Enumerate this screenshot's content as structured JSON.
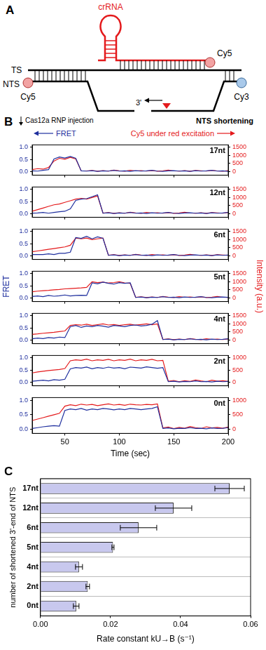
{
  "diagram": {
    "panel_label": "A",
    "labels": {
      "crRNA": "crRNA",
      "ts": "TS",
      "nts": "NTS",
      "ts_dye": "Cy5",
      "nts_left_dye": "Cy5",
      "nts_right_dye": "Cy3",
      "end": "3'"
    }
  },
  "chart_data": [
    {
      "type": "line",
      "panel_label": "B",
      "header": {
        "injection": "Cas12a RNP injection",
        "corner": "NTS shortening"
      },
      "x_label": "Time (sec)",
      "y_label": "FRET",
      "y2_label": "Intensity (a.u.)",
      "x": [
        20,
        25,
        30,
        35,
        40,
        45,
        50,
        55,
        60,
        65,
        70,
        75,
        80,
        85,
        90,
        95,
        100,
        105,
        110,
        115,
        120,
        125,
        130,
        135,
        140,
        145,
        150,
        155,
        160,
        165,
        170,
        175,
        180,
        185,
        190,
        195,
        200
      ],
      "xlim": [
        20,
        200
      ],
      "xticks": [
        50,
        100,
        150,
        200
      ],
      "subplots": [
        {
          "title": "17nt",
          "ylim": [
            -0.15,
            1.1
          ],
          "yticks": [
            {
              "value": 0,
              "label": "0.0"
            },
            {
              "value": 0.5,
              "label": "0.5"
            },
            {
              "value": 1,
              "label": "1.0"
            }
          ],
          "y2lim": [
            -225,
            1650
          ],
          "y2ticks": [
            0,
            500,
            1000,
            1500
          ],
          "series": [
            {
              "name": "FRET",
              "color": "#1f2f9e",
              "values": [
                0.03,
                0.02,
                0.05,
                0.08,
                0.52,
                0.6,
                0.56,
                0.62,
                0.55,
                0.03,
                0.02,
                0.04,
                0.01,
                0.03,
                0.02,
                0.05,
                0.02,
                0.03,
                0.01,
                0.04,
                0.02,
                0.03,
                0.05,
                0.02,
                0.01,
                0.03,
                0.04,
                0.02,
                0.03,
                0.01,
                0.04,
                0.02,
                0.03,
                0.05,
                0.02,
                0.03,
                0.01
              ]
            },
            {
              "name": "Cy5 under red excitation",
              "color": "#e41a1c",
              "axis": "y2",
              "values": [
                120,
                180,
                150,
                250,
                650,
                820,
                760,
                880,
                780,
                40,
                40,
                70,
                20,
                60,
                30,
                90,
                50,
                20,
                80,
                40,
                60,
                30,
                70,
                20,
                50,
                90,
                40,
                30,
                60,
                20,
                70,
                50,
                30,
                80,
                40,
                20,
                60
              ]
            }
          ]
        },
        {
          "title": "12nt",
          "ylim": [
            -0.15,
            1.1
          ],
          "yticks": [
            {
              "value": 0,
              "label": "0.0"
            },
            {
              "value": 0.5,
              "label": "0.5"
            },
            {
              "value": 1,
              "label": "1.0"
            }
          ],
          "y2lim": [
            -225,
            1650
          ],
          "y2ticks": [
            0,
            500,
            1000,
            1500
          ],
          "series": [
            {
              "name": "FRET",
              "color": "#1f2f9e",
              "values": [
                0.02,
                0.03,
                0.05,
                0.02,
                0.05,
                0.08,
                0.1,
                0.2,
                0.55,
                0.6,
                0.62,
                0.7,
                0.78,
                0.02,
                0.04,
                0.01,
                0.03,
                0.02,
                0.05,
                0.02,
                0.03,
                0.01,
                0.04,
                0.02,
                0.03,
                0.05,
                0.02,
                0.01,
                0.03,
                0.04,
                0.02,
                0.03,
                0.01,
                0.04,
                0.02,
                0.03,
                0.05
              ]
            },
            {
              "name": "Cy5 under red excitation",
              "color": "#e41a1c",
              "axis": "y2",
              "values": [
                150,
                250,
                350,
                450,
                550,
                600,
                700,
                800,
                900,
                950,
                900,
                1000,
                1100,
                40,
                70,
                20,
                60,
                30,
                90,
                50,
                20,
                80,
                40,
                60,
                30,
                70,
                20,
                50,
                90,
                40,
                30,
                60,
                20,
                70,
                50,
                30,
                80
              ]
            }
          ]
        },
        {
          "title": "6nt",
          "ylim": [
            -0.15,
            1.1
          ],
          "yticks": [
            {
              "value": 0,
              "label": "0.0"
            },
            {
              "value": 0.5,
              "label": "0.5"
            },
            {
              "value": 1,
              "label": "1.0"
            }
          ],
          "y2lim": [
            -225,
            1650
          ],
          "y2ticks": [
            0,
            500,
            1000,
            1500
          ],
          "series": [
            {
              "name": "FRET",
              "color": "#1f2f9e",
              "values": [
                0.05,
                0.05,
                0.05,
                0.08,
                0.05,
                0.1,
                0.1,
                0.15,
                0.75,
                0.72,
                0.8,
                0.7,
                0.78,
                0.72,
                0.02,
                0.04,
                0.01,
                0.03,
                0.02,
                0.05,
                0.02,
                0.03,
                0.01,
                0.04,
                0.02,
                0.03,
                0.05,
                0.02,
                0.01,
                0.03,
                0.04,
                0.02,
                0.03,
                0.01,
                0.04,
                0.02,
                0.03
              ]
            },
            {
              "name": "Cy5 under red excitation",
              "color": "#e41a1c",
              "axis": "y2",
              "values": [
                250,
                300,
                350,
                400,
                450,
                500,
                550,
                650,
                1100,
                1050,
                1100,
                1000,
                1050,
                1100,
                40,
                70,
                20,
                60,
                30,
                90,
                50,
                20,
                80,
                40,
                60,
                30,
                70,
                20,
                50,
                90,
                40,
                30,
                60,
                20,
                70,
                50,
                30
              ]
            }
          ]
        },
        {
          "title": "5nt",
          "ylim": [
            -0.15,
            1.1
          ],
          "yticks": [
            {
              "value": 0,
              "label": "0.0"
            },
            {
              "value": 0.5,
              "label": "0.5"
            },
            {
              "value": 1,
              "label": "1.0"
            }
          ],
          "y2lim": [
            -225,
            1650
          ],
          "y2ticks": [
            0,
            500,
            1000,
            1500
          ],
          "series": [
            {
              "name": "FRET",
              "color": "#1f2f9e",
              "values": [
                0.06,
                0.08,
                0.05,
                0.1,
                0.07,
                0.09,
                0.12,
                0.08,
                0.1,
                0.11,
                0.1,
                0.62,
                0.58,
                0.65,
                0.6,
                0.57,
                0.63,
                0.6,
                0.62,
                0.02,
                0.04,
                0.01,
                0.03,
                0.02,
                0.05,
                0.02,
                0.03,
                0.01,
                0.04,
                0.02,
                0.03,
                0.05,
                0.02,
                0.01,
                0.03,
                0.04,
                0.02
              ]
            },
            {
              "name": "Cy5 under red excitation",
              "color": "#e41a1c",
              "axis": "y2",
              "values": [
                380,
                420,
                450,
                470,
                500,
                520,
                560,
                580,
                600,
                620,
                650,
                1000,
                950,
                980,
                920,
                950,
                1000,
                930,
                900,
                40,
                70,
                20,
                60,
                30,
                90,
                50,
                20,
                80,
                40,
                60,
                30,
                70,
                20,
                50,
                90,
                40,
                30
              ]
            }
          ]
        },
        {
          "title": "4nt",
          "ylim": [
            -0.15,
            1.1
          ],
          "yticks": [
            {
              "value": 0,
              "label": "0.0"
            },
            {
              "value": 0.5,
              "label": "0.5"
            },
            {
              "value": 1,
              "label": "1.0"
            }
          ],
          "y2lim": [
            -225,
            1650
          ],
          "y2ticks": [
            0,
            500,
            1000,
            1500
          ],
          "series": [
            {
              "name": "FRET",
              "color": "#1f2f9e",
              "values": [
                0.05,
                0.08,
                0.06,
                0.1,
                0.08,
                0.12,
                0.1,
                0.55,
                0.6,
                0.52,
                0.58,
                0.55,
                0.6,
                0.57,
                0.53,
                0.6,
                0.58,
                0.55,
                0.6,
                0.62,
                0.58,
                0.6,
                0.65,
                0.8,
                0.02,
                0.04,
                0.01,
                0.03,
                0.02,
                0.05,
                0.02,
                0.03,
                0.01,
                0.04,
                0.02,
                0.03,
                0.05
              ]
            },
            {
              "name": "Cy5 under red excitation",
              "color": "#e41a1c",
              "axis": "y2",
              "values": [
                350,
                380,
                420,
                450,
                480,
                520,
                560,
                900,
                950,
                920,
                980,
                900,
                950,
                1000,
                930,
                960,
                900,
                950,
                980,
                920,
                960,
                1000,
                950,
                1000,
                40,
                70,
                20,
                60,
                30,
                90,
                50,
                20,
                80,
                40,
                60,
                30,
                70
              ]
            }
          ]
        },
        {
          "title": "2nt",
          "ylim": [
            -0.15,
            1.1
          ],
          "yticks": [
            {
              "value": 0,
              "label": "0.0"
            },
            {
              "value": 0.5,
              "label": "0.5"
            },
            {
              "value": 1,
              "label": "1.0"
            }
          ],
          "y2lim": [
            -150,
            1100
          ],
          "y2ticks": [
            0,
            500,
            1000
          ],
          "series": [
            {
              "name": "FRET",
              "color": "#1f2f9e",
              "values": [
                0.04,
                0.06,
                0.08,
                0.05,
                0.1,
                0.08,
                0.12,
                0.55,
                0.6,
                0.58,
                0.62,
                0.55,
                0.6,
                0.57,
                0.62,
                0.58,
                0.6,
                0.55,
                0.62,
                0.6,
                0.58,
                0.63,
                0.6,
                0.57,
                0.6,
                0.02,
                0.04,
                0.01,
                0.03,
                0.02,
                0.05,
                0.02,
                0.03,
                0.01,
                0.04,
                0.02,
                0.03
              ]
            },
            {
              "name": "Cy5 under red excitation",
              "color": "#e41a1c",
              "axis": "y2",
              "values": [
                380,
                420,
                450,
                480,
                500,
                520,
                560,
                880,
                920,
                900,
                950,
                880,
                920,
                900,
                940,
                880,
                920,
                900,
                950,
                880,
                920,
                900,
                940,
                880,
                900,
                40,
                70,
                20,
                60,
                30,
                90,
                50,
                20,
                80,
                40,
                60,
                30
              ]
            }
          ]
        },
        {
          "title": "0nt",
          "ylim": [
            -0.15,
            1.1
          ],
          "yticks": [
            {
              "value": 0,
              "label": "0.0"
            },
            {
              "value": 0.5,
              "label": "0.5"
            },
            {
              "value": 1,
              "label": "1.0"
            }
          ],
          "y2lim": [
            -150,
            1100
          ],
          "y2ticks": [
            0,
            500,
            1000
          ],
          "series": [
            {
              "name": "FRET",
              "color": "#1f2f9e",
              "values": [
                0.02,
                0.05,
                0.08,
                0.1,
                0.12,
                0.1,
                0.65,
                0.7,
                0.68,
                0.72,
                0.66,
                0.7,
                0.68,
                0.72,
                0.7,
                0.67,
                0.7,
                0.68,
                0.72,
                0.7,
                0.68,
                0.7,
                0.72,
                0.78,
                0.02,
                0.04,
                0.01,
                0.03,
                0.02,
                0.05,
                0.02,
                0.03,
                0.01,
                0.04,
                0.02,
                0.03,
                0.05
              ]
            },
            {
              "name": "Cy5 under red excitation",
              "color": "#e41a1c",
              "axis": "y2",
              "values": [
                300,
                350,
                400,
                450,
                500,
                550,
                800,
                850,
                820,
                870,
                840,
                860,
                820,
                850,
                880,
                840,
                860,
                830,
                870,
                850,
                840,
                860,
                850,
                880,
                40,
                70,
                20,
                60,
                30,
                90,
                50,
                20,
                80,
                40,
                60,
                30,
                70
              ]
            }
          ]
        }
      ]
    },
    {
      "type": "bar",
      "panel_label": "C",
      "orientation": "horizontal",
      "categories": [
        "17nt",
        "12nt",
        "6nt",
        "5nt",
        "4nt",
        "2nt",
        "0nt"
      ],
      "values": [
        0.054,
        0.038,
        0.028,
        0.0207,
        0.011,
        0.0135,
        0.0102
      ],
      "errors": [
        0.0042,
        0.0052,
        0.0052,
        0.0003,
        0.001,
        0.0005,
        0.0008
      ],
      "color": "#c8c8ee",
      "x_label": "Rate constant kU→B (s⁻¹)",
      "y_label": "number of shortened 3'-end of NTS",
      "xlim": [
        0,
        0.06
      ],
      "xticks": [
        {
          "value": 0,
          "label": "0.00"
        },
        {
          "value": 0.02,
          "label": "0.02"
        },
        {
          "value": 0.04,
          "label": "0.04"
        },
        {
          "value": 0.06,
          "label": "0.06"
        }
      ],
      "grid": true
    }
  ]
}
